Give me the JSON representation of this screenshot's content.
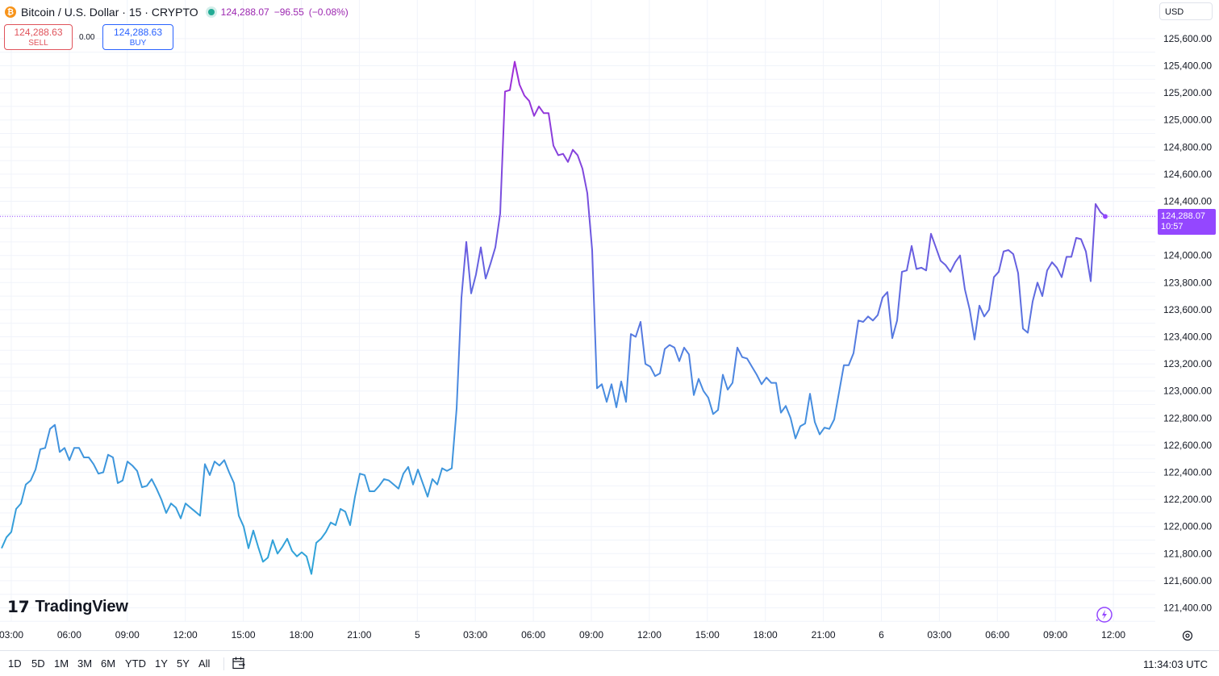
{
  "header": {
    "title": "Bitcoin / U.S. Dollar · 15 · CRYPTO",
    "icon": "bitcoin-icon",
    "price": "124,288.07",
    "change": "−96.55",
    "change_pct": "(−0.08%)"
  },
  "trade": {
    "sell_price": "124,288.63",
    "sell_label": "SELL",
    "spread": "0.00",
    "buy_price": "124,288.63",
    "buy_label": "BUY"
  },
  "currency": "USD",
  "price_tag": {
    "price": "124,288.07",
    "countdown": "10:57"
  },
  "logo": "TradingView",
  "ranges": [
    "1D",
    "5D",
    "1M",
    "3M",
    "6M",
    "YTD",
    "1Y",
    "5Y",
    "All"
  ],
  "clock": "11:34:03 UTC",
  "colors": {
    "line_start": "#2fa4d8",
    "line_mid": "#5b6fe0",
    "line_high": "#a22ad8",
    "price_tag": "#9447ff",
    "sell": "#e0535b",
    "buy": "#2962ff"
  },
  "chart_data": {
    "type": "line",
    "series": [
      {
        "values": [
          121840,
          121920,
          121960,
          122130,
          122170,
          122310,
          122340,
          122420,
          122570,
          122580,
          122720,
          122750,
          122550,
          122580,
          122490,
          122580,
          122580,
          122510,
          122510,
          122460,
          122390,
          122400,
          122530,
          122510,
          122320,
          122340,
          122480,
          122450,
          122410,
          122290,
          122300,
          122350,
          122280,
          122200,
          122100,
          122170,
          122140,
          122060,
          122170,
          122140,
          122110,
          122080,
          122460,
          122380,
          122480,
          122450,
          122490,
          122400,
          122320,
          122080,
          122000,
          121840,
          121970,
          121850,
          121740,
          121770,
          121900,
          121800,
          121850,
          121910,
          121820,
          121780,
          121810,
          121780,
          121650,
          121880,
          121910,
          121960,
          122030,
          122010,
          122130,
          122110,
          122010,
          122220,
          122390,
          122380,
          122260,
          122260,
          122300,
          122350,
          122340,
          122310,
          122280,
          122390,
          122440,
          122310,
          122420,
          122320,
          122220,
          122350,
          122310,
          122430,
          122410,
          122430,
          122870,
          123690,
          124100,
          123720,
          123860,
          124060,
          123830,
          123940,
          124060,
          124310,
          125210,
          125220,
          125430,
          125260,
          125180,
          125140,
          125030,
          125100,
          125050,
          125050,
          124810,
          124740,
          124750,
          124690,
          124780,
          124740,
          124640,
          124460,
          124040,
          123020,
          123050,
          122920,
          123050,
          122880,
          123070,
          122920,
          123420,
          123400,
          123510,
          123200,
          123180,
          123110,
          123130,
          123310,
          123340,
          123320,
          123220,
          123320,
          123270,
          122970,
          123090,
          123000,
          122950,
          122830,
          122860,
          123120,
          123010,
          123060,
          123320,
          123250,
          123240,
          123180,
          123120,
          123050,
          123100,
          123060,
          123060,
          122840,
          122890,
          122800,
          122650,
          122740,
          122760,
          122980,
          122770,
          122680,
          122730,
          122720,
          122790,
          122990,
          123190,
          123190,
          123280,
          123520,
          123510,
          123550,
          123520,
          123560,
          123690,
          123730,
          123390,
          123520,
          123880,
          123890,
          124070,
          123900,
          123910,
          123890,
          124160,
          124060,
          123960,
          123930,
          123880,
          123950,
          124000,
          123750,
          123600,
          123380,
          123630,
          123550,
          123600,
          123840,
          123880,
          124030,
          124040,
          124010,
          123870,
          123460,
          123430,
          123660,
          123800,
          123700,
          123890,
          123950,
          123910,
          123840,
          123990,
          123990,
          124130,
          124120,
          124030,
          123810,
          124380,
          124320,
          124288
        ]
      }
    ],
    "x_ticks": [
      "03:00",
      "06:00",
      "09:00",
      "12:00",
      "15:00",
      "18:00",
      "21:00",
      "5",
      "03:00",
      "06:00",
      "09:00",
      "12:00",
      "15:00",
      "18:00",
      "21:00",
      "6",
      "03:00",
      "06:00",
      "09:00",
      "12:00"
    ],
    "y_ticks": [
      "125,600.00",
      "125,400.00",
      "125,200.00",
      "125,000.00",
      "124,800.00",
      "124,600.00",
      "124,400.00",
      "124,000.00",
      "123,800.00",
      "123,600.00",
      "123,400.00",
      "123,200.00",
      "123,000.00",
      "122,800.00",
      "122,600.00",
      "122,400.00",
      "122,200.00",
      "122,000.00",
      "121,800.00",
      "121,600.00",
      "121,400.00"
    ],
    "ylim": [
      121300,
      125700
    ],
    "last_price": 124288.07,
    "grid": true
  }
}
